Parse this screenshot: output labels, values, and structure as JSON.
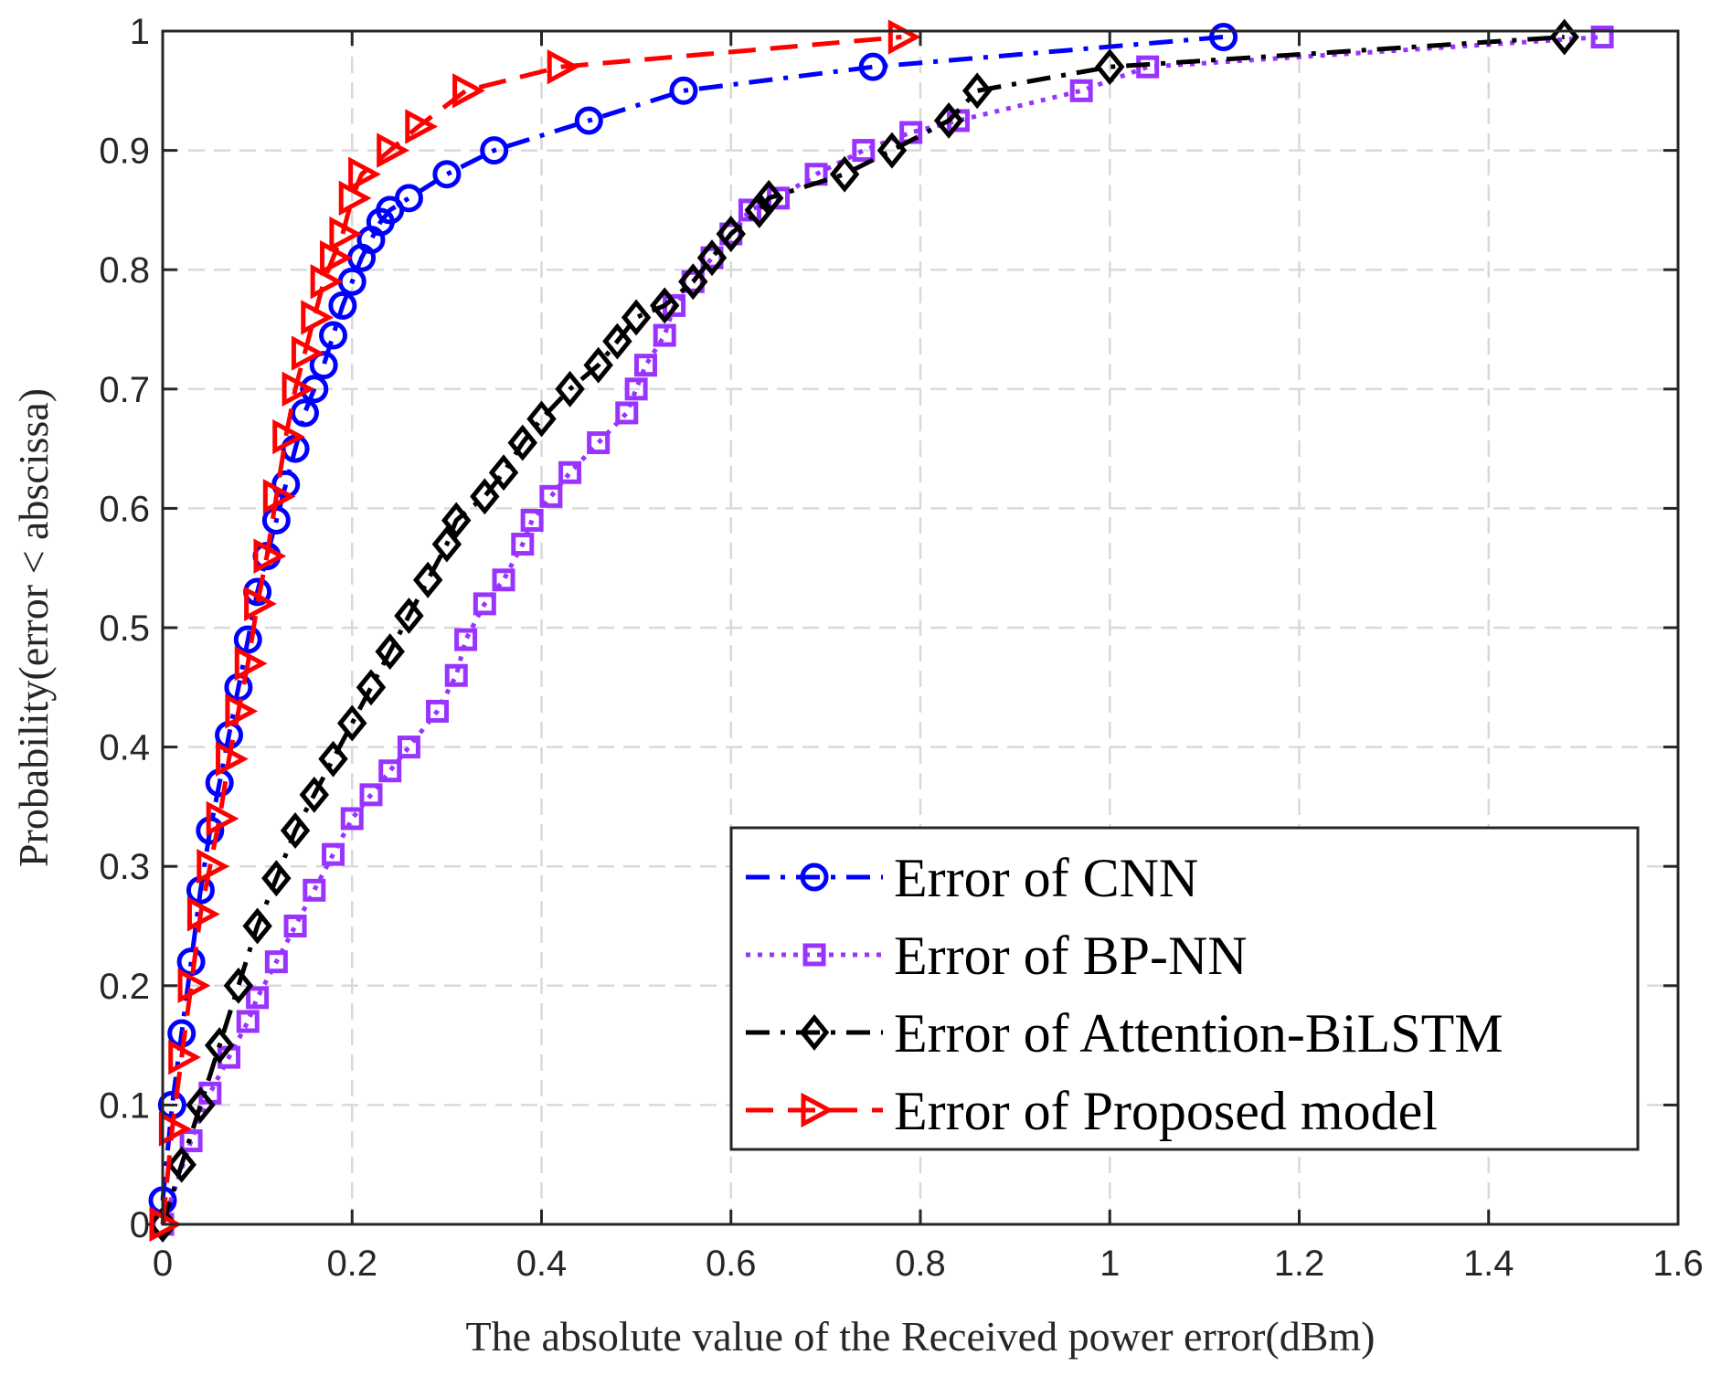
{
  "chart_data": {
    "type": "line",
    "title": "",
    "xlabel": "The absolute value of the Received power error(dBm)",
    "ylabel": "Probability(error < abscissa)",
    "xlim": [
      0,
      1.6
    ],
    "ylim": [
      0,
      1
    ],
    "xticks": [
      0,
      0.2,
      0.4,
      0.6,
      0.8,
      1,
      1.2,
      1.4,
      1.6
    ],
    "xtick_labels": [
      "0",
      "0.2",
      "0.4",
      "0.6",
      "0.8",
      "1",
      "1.2",
      "1.4",
      "1.6"
    ],
    "yticks": [
      0,
      0.1,
      0.2,
      0.3,
      0.4,
      0.5,
      0.6,
      0.7,
      0.8,
      0.9,
      1
    ],
    "ytick_labels": [
      "0",
      "0.1",
      "0.2",
      "0.3",
      "0.4",
      "0.5",
      "0.6",
      "0.7",
      "0.8",
      "0.9",
      "1"
    ],
    "grid": true,
    "legend_position": "bottom-right",
    "series": [
      {
        "name": "Error of CNN",
        "color": "#0000ff",
        "linestyle": "dashdot",
        "marker": "circle",
        "x": [
          0,
          0.01,
          0.02,
          0.03,
          0.04,
          0.05,
          0.06,
          0.07,
          0.08,
          0.09,
          0.1,
          0.11,
          0.12,
          0.13,
          0.14,
          0.15,
          0.16,
          0.17,
          0.18,
          0.19,
          0.2,
          0.21,
          0.22,
          0.23,
          0.24,
          0.26,
          0.3,
          0.35,
          0.45,
          0.55,
          0.75,
          1.12
        ],
        "y": [
          0.02,
          0.1,
          0.16,
          0.22,
          0.28,
          0.33,
          0.37,
          0.41,
          0.45,
          0.49,
          0.53,
          0.56,
          0.59,
          0.62,
          0.65,
          0.68,
          0.7,
          0.72,
          0.745,
          0.77,
          0.79,
          0.81,
          0.825,
          0.84,
          0.85,
          0.86,
          0.88,
          0.9,
          0.925,
          0.95,
          0.97,
          0.995
        ]
      },
      {
        "name": "Error of BP-NN",
        "color": "#9933ff",
        "linestyle": "dotted",
        "marker": "square",
        "x": [
          0,
          0.03,
          0.05,
          0.07,
          0.09,
          0.1,
          0.12,
          0.14,
          0.16,
          0.18,
          0.2,
          0.22,
          0.24,
          0.26,
          0.29,
          0.31,
          0.32,
          0.34,
          0.36,
          0.38,
          0.39,
          0.41,
          0.43,
          0.46,
          0.49,
          0.5,
          0.51,
          0.53,
          0.54,
          0.56,
          0.58,
          0.6,
          0.62,
          0.65,
          0.69,
          0.74,
          0.79,
          0.84,
          0.97,
          1.04,
          1.52
        ],
        "y": [
          0,
          0.07,
          0.11,
          0.14,
          0.17,
          0.19,
          0.22,
          0.25,
          0.28,
          0.31,
          0.34,
          0.36,
          0.38,
          0.4,
          0.43,
          0.46,
          0.49,
          0.52,
          0.54,
          0.57,
          0.59,
          0.61,
          0.63,
          0.655,
          0.68,
          0.7,
          0.72,
          0.745,
          0.77,
          0.79,
          0.81,
          0.83,
          0.85,
          0.86,
          0.88,
          0.9,
          0.915,
          0.925,
          0.95,
          0.97,
          0.995
        ]
      },
      {
        "name": "Error of Attention-BiLSTM",
        "color": "#000000",
        "linestyle": "dashdot",
        "marker": "diamond",
        "x": [
          0,
          0.02,
          0.04,
          0.06,
          0.08,
          0.1,
          0.12,
          0.14,
          0.16,
          0.18,
          0.2,
          0.22,
          0.24,
          0.26,
          0.28,
          0.3,
          0.31,
          0.34,
          0.36,
          0.38,
          0.4,
          0.43,
          0.46,
          0.48,
          0.5,
          0.53,
          0.56,
          0.58,
          0.6,
          0.63,
          0.64,
          0.72,
          0.77,
          0.83,
          0.86,
          1,
          1.48
        ],
        "y": [
          0,
          0.05,
          0.1,
          0.15,
          0.2,
          0.25,
          0.29,
          0.33,
          0.36,
          0.39,
          0.42,
          0.45,
          0.48,
          0.51,
          0.54,
          0.57,
          0.59,
          0.61,
          0.63,
          0.655,
          0.675,
          0.7,
          0.72,
          0.74,
          0.76,
          0.77,
          0.79,
          0.81,
          0.83,
          0.85,
          0.86,
          0.88,
          0.9,
          0.925,
          0.95,
          0.97,
          0.995
        ]
      },
      {
        "name": "Error of Proposed model",
        "color": "#ff0000",
        "linestyle": "dashed",
        "marker": "triangle-right",
        "x": [
          0,
          0.01,
          0.02,
          0.03,
          0.04,
          0.05,
          0.06,
          0.07,
          0.08,
          0.09,
          0.1,
          0.11,
          0.12,
          0.13,
          0.14,
          0.15,
          0.16,
          0.17,
          0.18,
          0.19,
          0.2,
          0.21,
          0.24,
          0.27,
          0.32,
          0.42,
          0.78
        ],
        "y": [
          0,
          0.08,
          0.14,
          0.2,
          0.26,
          0.3,
          0.34,
          0.39,
          0.43,
          0.47,
          0.52,
          0.56,
          0.61,
          0.66,
          0.7,
          0.73,
          0.76,
          0.79,
          0.81,
          0.83,
          0.86,
          0.88,
          0.9,
          0.92,
          0.95,
          0.97,
          0.995
        ]
      }
    ]
  }
}
